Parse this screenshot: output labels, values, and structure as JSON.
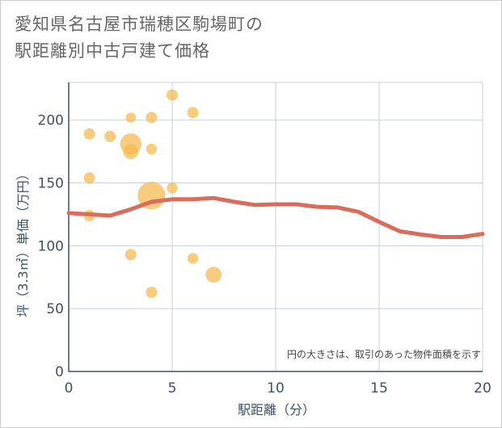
{
  "title_lines": [
    "愛知県名古屋市瑞穂区駒場町の",
    "駅距離別中古戸建て価格"
  ],
  "chart_data": {
    "type": "scatter",
    "title": "愛知県名古屋市瑞穂区駒場町の駅距離別中古戸建て価格",
    "xlabel": "駅距離（分）",
    "ylabel": "坪（3.3㎡）単価（万円）",
    "xlim": [
      0,
      20
    ],
    "ylim": [
      0,
      230
    ],
    "xticks": [
      0,
      5,
      10,
      15,
      20
    ],
    "yticks": [
      0,
      50,
      100,
      150,
      200
    ],
    "grid": true,
    "note": "円の大きさは、取引のあった物件面積を示す",
    "bubble_color": "#f5b84d",
    "line_color": "#d96c5a",
    "bubbles": [
      {
        "x": 1,
        "y": 189,
        "size": 1
      },
      {
        "x": 1,
        "y": 154,
        "size": 1
      },
      {
        "x": 1,
        "y": 124,
        "size": 1
      },
      {
        "x": 2,
        "y": 187,
        "size": 1
      },
      {
        "x": 3,
        "y": 202,
        "size": 0.8
      },
      {
        "x": 3,
        "y": 181,
        "size": 3.5
      },
      {
        "x": 3,
        "y": 175,
        "size": 1.8
      },
      {
        "x": 3,
        "y": 93,
        "size": 1
      },
      {
        "x": 4,
        "y": 202,
        "size": 1
      },
      {
        "x": 4,
        "y": 177,
        "size": 0.9
      },
      {
        "x": 4,
        "y": 140,
        "size": 6
      },
      {
        "x": 4,
        "y": 63,
        "size": 1
      },
      {
        "x": 5,
        "y": 220,
        "size": 1
      },
      {
        "x": 5,
        "y": 146,
        "size": 0.9
      },
      {
        "x": 6,
        "y": 206,
        "size": 1
      },
      {
        "x": 6,
        "y": 90,
        "size": 0.9
      },
      {
        "x": 7,
        "y": 77,
        "size": 2
      }
    ],
    "trend_line": {
      "x": [
        0,
        1,
        2,
        3,
        4,
        5,
        6,
        7,
        8,
        9,
        10,
        11,
        12,
        13,
        14,
        15,
        16,
        17,
        18,
        19,
        20
      ],
      "y": [
        126,
        125,
        124,
        129,
        135,
        137,
        137,
        138,
        135,
        132.5,
        133,
        133,
        131,
        130.5,
        127,
        119,
        111.5,
        109,
        107,
        107,
        109.5
      ]
    }
  }
}
